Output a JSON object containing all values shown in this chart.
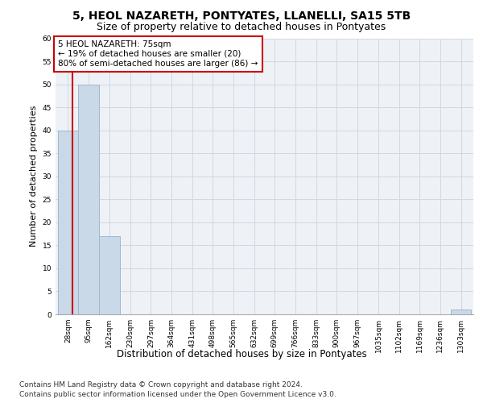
{
  "title": "5, HEOL NAZARETH, PONTYATES, LLANELLI, SA15 5TB",
  "subtitle": "Size of property relative to detached houses in Pontyates",
  "xlabel": "Distribution of detached houses by size in Pontyates",
  "ylabel": "Number of detached properties",
  "bin_edges": [
    28,
    95,
    162,
    230,
    297,
    364,
    431,
    498,
    565,
    632,
    699,
    766,
    833,
    900,
    967,
    1035,
    1102,
    1169,
    1236,
    1303,
    1370
  ],
  "bar_heights": [
    40,
    50,
    17,
    0,
    0,
    0,
    0,
    0,
    0,
    0,
    0,
    0,
    0,
    0,
    0,
    0,
    0,
    0,
    0,
    1
  ],
  "bar_color": "#c9d9e8",
  "bar_edgecolor": "#a0b8cc",
  "subject_value": 75,
  "subject_line_color": "#cc0000",
  "subject_label": "5 HEOL NAZARETH: 75sqm",
  "annotation_line1": "← 19% of detached houses are smaller (20)",
  "annotation_line2": "80% of semi-detached houses are larger (86) →",
  "annotation_box_color": "#cc0000",
  "ylim": [
    0,
    60
  ],
  "yticks": [
    0,
    5,
    10,
    15,
    20,
    25,
    30,
    35,
    40,
    45,
    50,
    55,
    60
  ],
  "grid_color": "#d0d8e4",
  "background_color": "#eef2f7",
  "footer_line1": "Contains HM Land Registry data © Crown copyright and database right 2024.",
  "footer_line2": "Contains public sector information licensed under the Open Government Licence v3.0.",
  "title_fontsize": 10,
  "subtitle_fontsize": 9,
  "annotation_fontsize": 7.5,
  "tick_fontsize": 6.5,
  "ylabel_fontsize": 8,
  "xlabel_fontsize": 8.5,
  "footer_fontsize": 6.5
}
